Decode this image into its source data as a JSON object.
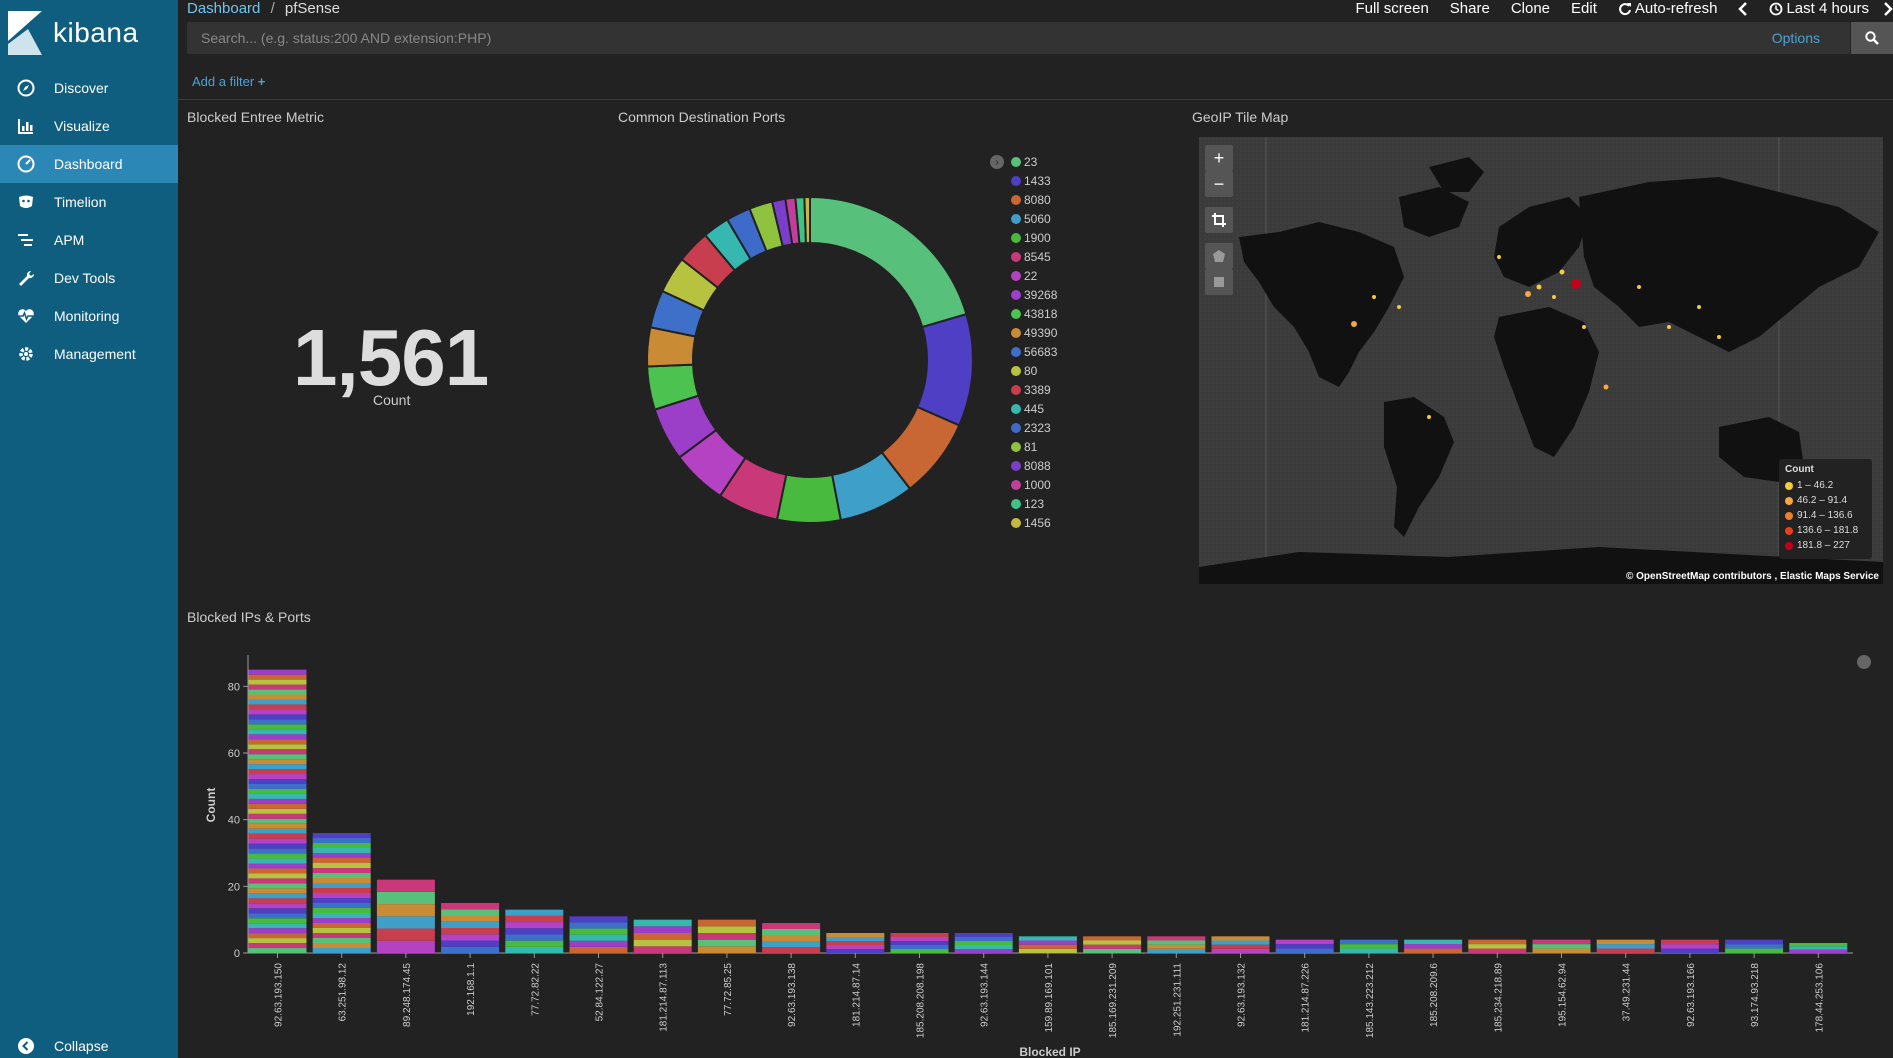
{
  "app": {
    "name": "kibana"
  },
  "sidebar": {
    "items": [
      {
        "label": "Discover",
        "icon": "compass-icon"
      },
      {
        "label": "Visualize",
        "icon": "bar-chart-icon"
      },
      {
        "label": "Dashboard",
        "icon": "dashboard-icon",
        "active": true
      },
      {
        "label": "Timelion",
        "icon": "timelion-icon"
      },
      {
        "label": "APM",
        "icon": "apm-icon"
      },
      {
        "label": "Dev Tools",
        "icon": "wrench-icon"
      },
      {
        "label": "Monitoring",
        "icon": "heartbeat-icon"
      },
      {
        "label": "Management",
        "icon": "gear-icon"
      }
    ],
    "collapse_label": "Collapse"
  },
  "breadcrumb": {
    "root": "Dashboard",
    "separator": "/",
    "current": "pfSense"
  },
  "top_menu": {
    "full_screen": "Full screen",
    "share": "Share",
    "clone": "Clone",
    "edit": "Edit",
    "auto_refresh": "Auto-refresh",
    "time_range": "Last 4 hours"
  },
  "search": {
    "placeholder": "Search... (e.g. status:200 AND extension:PHP)",
    "options_label": "Options"
  },
  "filter": {
    "add_label": "Add a filter"
  },
  "panels": {
    "metric": {
      "title": "Blocked Entree Metric",
      "value": "1,561",
      "label": "Count"
    },
    "donut": {
      "title": "Common Destination Ports"
    },
    "map": {
      "title": "GeoIP Tile Map",
      "legend_title": "Count",
      "legend": [
        {
          "label": "1 – 46.2",
          "color": "#f6c945"
        },
        {
          "label": "46.2 – 91.4",
          "color": "#f5a93c"
        },
        {
          "label": "91.4 – 136.6",
          "color": "#ef7d2a"
        },
        {
          "label": "136.6 – 181.8",
          "color": "#e2401f"
        },
        {
          "label": "181.8 – 227",
          "color": "#c7001a"
        }
      ],
      "attribution_osm": "© OpenStreetMap contributors",
      "attribution_sep": ",",
      "attribution_ems": "Elastic Maps Service"
    },
    "bars": {
      "title": "Blocked IPs & Ports"
    }
  },
  "chart_data": [
    {
      "type": "pie",
      "title": "Common Destination Ports",
      "labels": [
        "23",
        "1433",
        "8080",
        "5060",
        "1900",
        "8545",
        "22",
        "39268",
        "43818",
        "49390",
        "56683",
        "80",
        "3389",
        "445",
        "2323",
        "81",
        "8088",
        "1000",
        "123",
        "1456"
      ],
      "values": [
        186,
        101,
        72,
        68,
        57,
        55,
        50,
        48,
        39,
        35,
        34,
        33,
        30,
        24,
        22,
        21,
        12,
        9,
        8,
        5
      ],
      "colors": [
        "#57c17b",
        "#4f3fc5",
        "#c96734",
        "#3ea0c9",
        "#48bb3e",
        "#c9397a",
        "#b442c2",
        "#9b3fc9",
        "#4cc250",
        "#c98c34",
        "#3e6fc9",
        "#b7c23e",
        "#c93e4f",
        "#36b8b0",
        "#3e6ac9",
        "#8fc23e",
        "#7a3fc9",
        "#c23e9b",
        "#3ec286",
        "#c2b93e"
      ],
      "donut": true
    },
    {
      "type": "bar",
      "stacked": true,
      "categories": [
        "92.63.193.150",
        "63.251.98.12",
        "89.248.174.45",
        "192.168.1.1",
        "77.72.82.22",
        "52.84.122.27",
        "181.214.87.113",
        "77.72.85.25",
        "92.63.193.138",
        "181.214.87.14",
        "185.208.208.198",
        "92.63.193.144",
        "159.89.169.101",
        "185.169.231.209",
        "192.251.231.111",
        "92.63.193.132",
        "181.214.87.226",
        "185.143.223.212",
        "185.208.209.6",
        "185.234.218.89",
        "195.154.62.94",
        "37.49.231.44",
        "92.63.193.166",
        "93.174.93.218",
        "178.44.253.106"
      ],
      "values": [
        85,
        36,
        22,
        15,
        13,
        11,
        10,
        10,
        9,
        6,
        6,
        6,
        5,
        5,
        5,
        5,
        4,
        4,
        4,
        4,
        4,
        4,
        4,
        4,
        3
      ],
      "xlabel": "Blocked IP",
      "ylabel": "Count",
      "yticks": [
        0,
        20,
        40,
        60,
        80
      ],
      "ylim": [
        0,
        90
      ]
    }
  ]
}
